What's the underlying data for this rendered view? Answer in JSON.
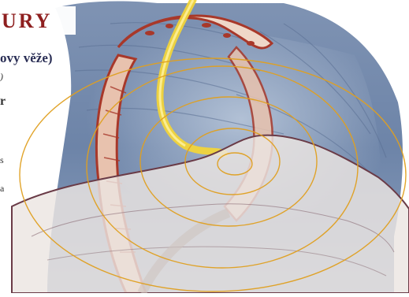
{
  "header": {
    "title": "URY",
    "subtitle": "ovy věže)"
  },
  "side_text": {
    "fragments": [
      ")",
      "r",
      "s",
      "a"
    ]
  },
  "colors": {
    "title": "#8e1f1f",
    "subtitle": "#2a2e55",
    "spiral": "#e0a020",
    "highlight_path": "#f1d43a",
    "tissue_blue": "#6f88ad",
    "tissue_red": "#a8382a",
    "membrane": "#e8e0dc",
    "membrane_edge": "#6a3b47"
  },
  "icons": [
    "spiral-overlay",
    "golden-path"
  ]
}
